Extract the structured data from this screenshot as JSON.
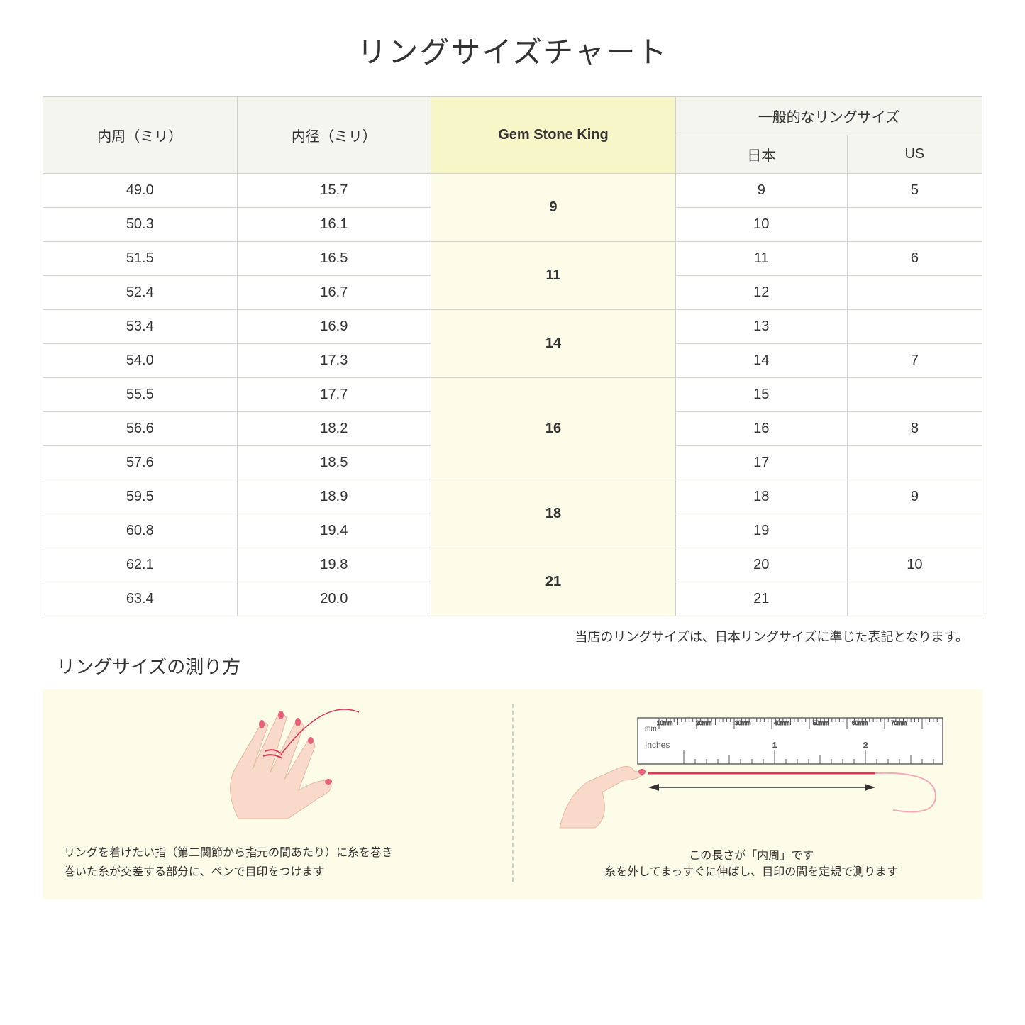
{
  "title": "リングサイズチャート",
  "headers": {
    "circumference": "内周（ミリ）",
    "diameter": "内径（ミリ）",
    "gsk": "Gem Stone King",
    "general": "一般的なリングサイズ",
    "japan": "日本",
    "us": "US"
  },
  "groups": [
    {
      "gsk": "9",
      "rows": [
        {
          "circ": "49.0",
          "diam": "15.7",
          "jp": "9",
          "us": "5"
        },
        {
          "circ": "50.3",
          "diam": "16.1",
          "jp": "10",
          "us": ""
        }
      ]
    },
    {
      "gsk": "11",
      "rows": [
        {
          "circ": "51.5",
          "diam": "16.5",
          "jp": "11",
          "us": "6"
        },
        {
          "circ": "52.4",
          "diam": "16.7",
          "jp": "12",
          "us": ""
        }
      ]
    },
    {
      "gsk": "14",
      "rows": [
        {
          "circ": "53.4",
          "diam": "16.9",
          "jp": "13",
          "us": ""
        },
        {
          "circ": "54.0",
          "diam": "17.3",
          "jp": "14",
          "us": "7"
        }
      ]
    },
    {
      "gsk": "16",
      "rows": [
        {
          "circ": "55.5",
          "diam": "17.7",
          "jp": "15",
          "us": ""
        },
        {
          "circ": "56.6",
          "diam": "18.2",
          "jp": "16",
          "us": "8"
        },
        {
          "circ": "57.6",
          "diam": "18.5",
          "jp": "17",
          "us": ""
        }
      ]
    },
    {
      "gsk": "18",
      "rows": [
        {
          "circ": "59.5",
          "diam": "18.9",
          "jp": "18",
          "us": "9"
        },
        {
          "circ": "60.8",
          "diam": "19.4",
          "jp": "19",
          "us": ""
        }
      ]
    },
    {
      "gsk": "21",
      "rows": [
        {
          "circ": "62.1",
          "diam": "19.8",
          "jp": "20",
          "us": "10"
        },
        {
          "circ": "63.4",
          "diam": "20.0",
          "jp": "21",
          "us": ""
        }
      ]
    }
  ],
  "note": "当店のリングサイズは、日本リングサイズに準じた表記となります。",
  "howto_title": "リングサイズの測り方",
  "panel1_caption": "リングを着けたい指（第二関節から指元の間あたり）に糸を巻き\n巻いた糸が交差する部分に、ペンで目印をつけます",
  "panel2_ruler_label": "この長さが「内周」です",
  "panel2_caption": "糸を外してまっすぐに伸ばし、目印の間を定規で測ります",
  "ruler_marks": [
    "10mm",
    "20mm",
    "30mm",
    "40mm",
    "50mm",
    "60mm",
    "70mm"
  ],
  "ruler_inches": "Inches",
  "ruler_mm": "mm",
  "colors": {
    "header_bg": "#f5f5ef",
    "gsk_header_bg": "#f7f6c9",
    "gsk_cell_bg": "#fcfce8",
    "border": "#d0d0c8",
    "howto_bg": "#fcfce8",
    "hand_skin": "#f9d9c9",
    "nail": "#e8637b",
    "thread": "#d93854"
  }
}
